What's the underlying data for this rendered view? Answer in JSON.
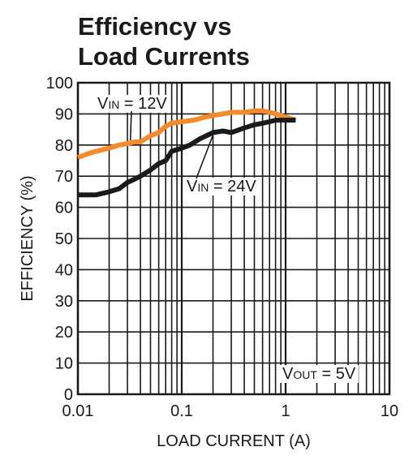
{
  "chart_data": {
    "type": "line",
    "title_lines": [
      "Efficiency vs",
      "Load Currents"
    ],
    "xlabel": "LOAD CURRENT (A)",
    "ylabel": "EFFICIENCY (%)",
    "x_scale": "log",
    "xlim": [
      0.01,
      10
    ],
    "ylim": [
      0,
      100
    ],
    "x_ticks": [
      0.01,
      0.1,
      1,
      10
    ],
    "x_tick_labels": [
      "0.01",
      "0.1",
      "1",
      "10"
    ],
    "y_ticks": [
      0,
      10,
      20,
      30,
      40,
      50,
      60,
      70,
      80,
      90,
      100
    ],
    "y_tick_labels": [
      "0",
      "10",
      "20",
      "30",
      "40",
      "50",
      "60",
      "70",
      "80",
      "90",
      "100"
    ],
    "grid": true,
    "series": [
      {
        "name": "VIN = 12V",
        "label_main": "V",
        "label_sub": "IN",
        "label_rest": " = 12V",
        "color": "#f58a2a",
        "points": [
          [
            0.01,
            76
          ],
          [
            0.012,
            77
          ],
          [
            0.015,
            78
          ],
          [
            0.02,
            79
          ],
          [
            0.025,
            80
          ],
          [
            0.03,
            80.5
          ],
          [
            0.035,
            81
          ],
          [
            0.04,
            81
          ],
          [
            0.05,
            83
          ],
          [
            0.06,
            84
          ],
          [
            0.07,
            86
          ],
          [
            0.08,
            87
          ],
          [
            0.1,
            87.5
          ],
          [
            0.13,
            88
          ],
          [
            0.17,
            89
          ],
          [
            0.2,
            89.5
          ],
          [
            0.25,
            90
          ],
          [
            0.3,
            90.5
          ],
          [
            0.4,
            90.5
          ],
          [
            0.5,
            91
          ],
          [
            0.6,
            91
          ],
          [
            0.7,
            90.5
          ],
          [
            0.8,
            90
          ],
          [
            1,
            89
          ],
          [
            1.25,
            88
          ]
        ]
      },
      {
        "name": "VIN = 24V",
        "label_main": "V",
        "label_sub": "IN",
        "label_rest": " = 24V",
        "color": "#1a1a1a",
        "points": [
          [
            0.01,
            64
          ],
          [
            0.012,
            64
          ],
          [
            0.015,
            64
          ],
          [
            0.02,
            65
          ],
          [
            0.025,
            66
          ],
          [
            0.03,
            68
          ],
          [
            0.035,
            69
          ],
          [
            0.04,
            70
          ],
          [
            0.05,
            72
          ],
          [
            0.06,
            74
          ],
          [
            0.07,
            75
          ],
          [
            0.08,
            78
          ],
          [
            0.1,
            79
          ],
          [
            0.12,
            80
          ],
          [
            0.15,
            82
          ],
          [
            0.2,
            84
          ],
          [
            0.25,
            84.5
          ],
          [
            0.3,
            84
          ],
          [
            0.4,
            85.5
          ],
          [
            0.5,
            86.5
          ],
          [
            0.6,
            87
          ],
          [
            0.7,
            87.5
          ],
          [
            0.8,
            88
          ],
          [
            1,
            88
          ],
          [
            1.25,
            88
          ]
        ]
      }
    ],
    "annotation": {
      "main": "V",
      "sub": "OUT",
      "rest": " = 5V"
    }
  }
}
